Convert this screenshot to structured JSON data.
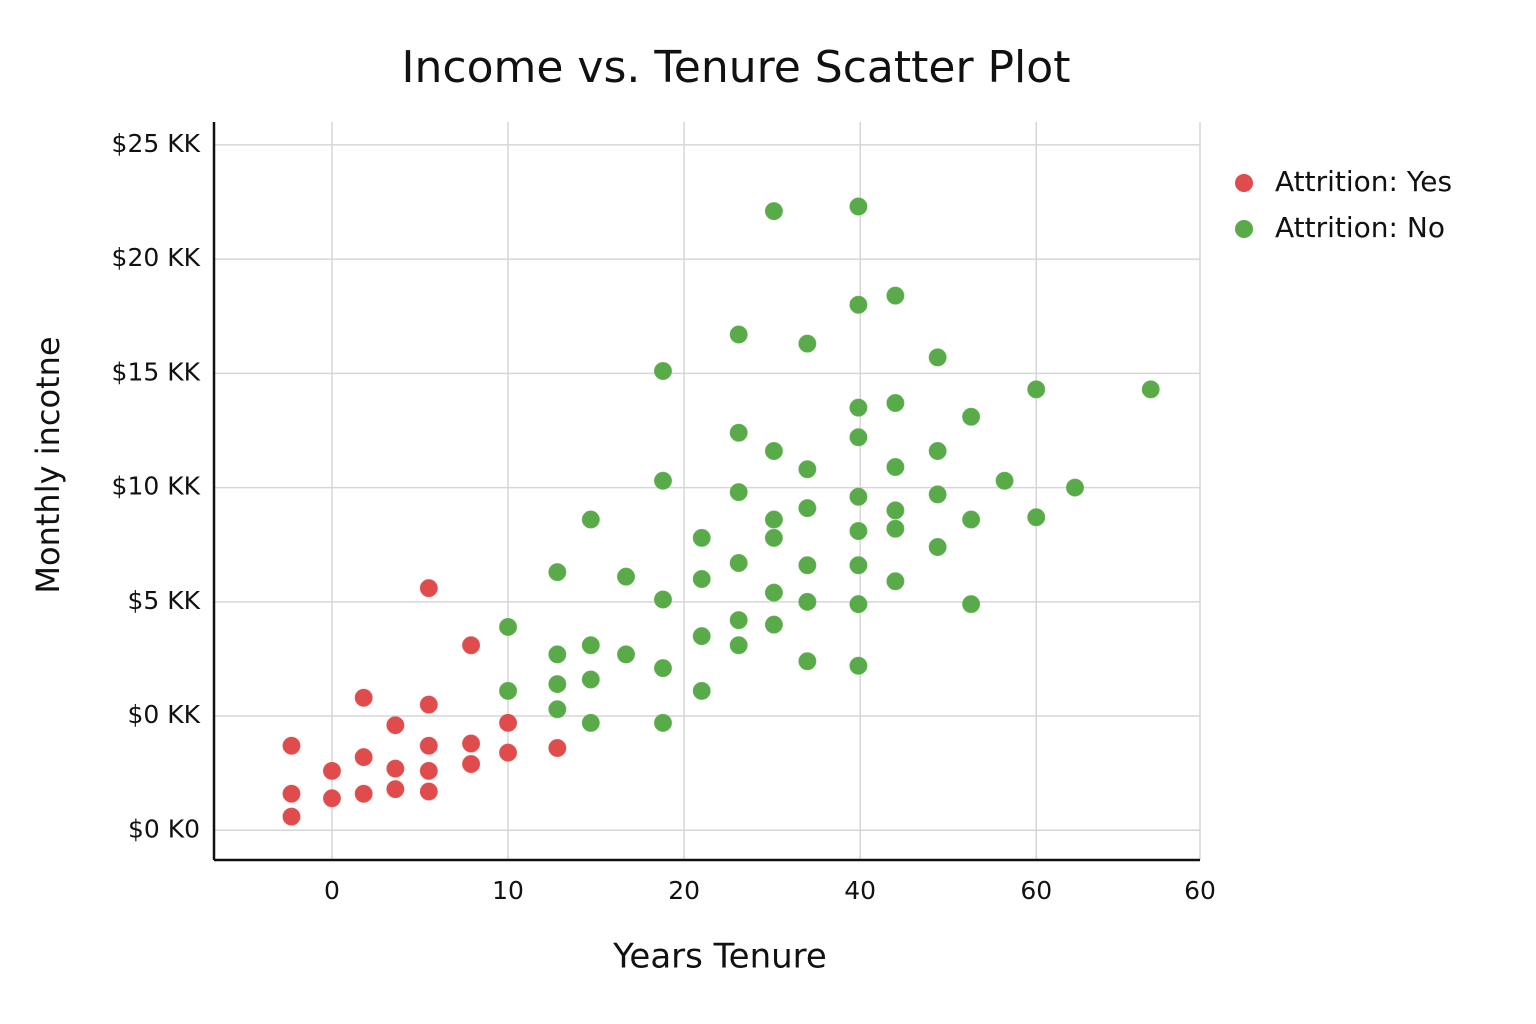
{
  "chart_data": {
    "type": "scatter",
    "title": "Income vs. Tenure Scatter Plot",
    "x_label": "Years Tenure",
    "y_label": "Monthly incotne",
    "xlim": [
      -6.7,
      49.3
    ],
    "ylim": [
      -6.3,
      26
    ],
    "xticks": [
      0,
      10,
      20,
      {
        "value": 30,
        "label": "40"
      },
      {
        "value": 40,
        "label": "60"
      },
      {
        "value": 49.3,
        "label": "60"
      }
    ],
    "yticks": [
      {
        "value": -5,
        "label": "$0 K0"
      },
      {
        "value": 0,
        "label": "$0 KK"
      },
      {
        "value": 5,
        "label": "$5 KK"
      },
      {
        "value": 10,
        "label": "$10 KK"
      },
      {
        "value": 15,
        "label": "$15 KK"
      },
      {
        "value": 20,
        "label": "$20 KK"
      },
      {
        "value": 25,
        "label": "$25 KK"
      }
    ],
    "grid": true,
    "legend": "top-right",
    "series": [
      {
        "name": "Attrition: Yes",
        "color": "#e04b4b",
        "x": [
          -2.3,
          -2.3,
          -2.3,
          0,
          0,
          1.8,
          1.8,
          1.8,
          3.6,
          3.6,
          3.6,
          5.5,
          5.5,
          5.5,
          5.5,
          5.5,
          7.9,
          7.9,
          7.9,
          10,
          10,
          12.8
        ],
        "values": [
          -1.3,
          -3.4,
          -4.4,
          -2.4,
          -3.6,
          0.8,
          -1.8,
          -3.4,
          -0.4,
          -2.3,
          -3.2,
          5.6,
          0.5,
          -1.3,
          -2.4,
          -3.3,
          3.1,
          -1.2,
          -2.1,
          -0.3,
          -1.6,
          -1.4
        ]
      },
      {
        "name": "Attrition: No",
        "color": "#58ab48",
        "x": [
          10,
          10,
          12.8,
          12.8,
          12.8,
          12.8,
          14.7,
          14.7,
          14.7,
          14.7,
          16.7,
          16.7,
          18.8,
          18.8,
          18.8,
          18.8,
          18.8,
          21,
          21,
          21,
          21,
          23.1,
          23.1,
          23.1,
          23.1,
          23.1,
          23.1,
          25.1,
          25.1,
          25.1,
          25.1,
          25.1,
          25.1,
          27,
          27,
          27,
          27,
          27,
          27,
          29.9,
          29.9,
          29.9,
          29.9,
          29.9,
          29.9,
          29.9,
          29.9,
          29.9,
          32,
          32,
          32,
          32,
          32,
          32,
          34.4,
          34.4,
          34.4,
          34.4,
          36.3,
          36.3,
          36.3,
          38.2,
          40,
          40,
          42.2,
          46.5
        ],
        "values": [
          3.9,
          1.1,
          6.3,
          2.7,
          1.4,
          0.3,
          8.6,
          3.1,
          1.6,
          -0.3,
          6.1,
          2.7,
          15.1,
          10.3,
          5.1,
          2.1,
          -0.3,
          7.8,
          6.0,
          3.5,
          1.1,
          16.7,
          12.4,
          9.8,
          6.7,
          4.2,
          3.1,
          22.1,
          11.6,
          8.6,
          7.8,
          5.4,
          4.0,
          16.3,
          10.8,
          9.1,
          6.6,
          5.0,
          2.4,
          22.3,
          18.0,
          13.5,
          12.2,
          9.6,
          8.1,
          6.6,
          4.9,
          2.2,
          18.4,
          13.7,
          10.9,
          9.0,
          8.2,
          5.9,
          15.7,
          11.6,
          9.7,
          7.4,
          13.1,
          8.6,
          4.9,
          10.3,
          14.3,
          8.7,
          10.0,
          14.3
        ]
      }
    ]
  }
}
